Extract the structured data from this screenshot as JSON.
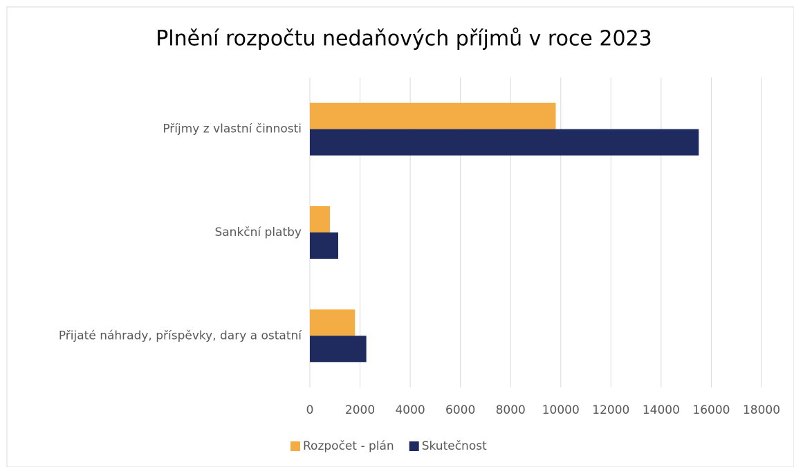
{
  "chart_data": {
    "type": "hbar",
    "title": "Plnění rozpočtu nedaňových příjmů v roce 2023",
    "categories": [
      "Příjmy z vlastní činnosti",
      "Sankční platby",
      "Přijaté náhrady, příspěvky, dary a ostatní"
    ],
    "series": [
      {
        "name": "Rozpočet - plán",
        "color": "#f4ac45",
        "values": [
          9800,
          800,
          1800
        ]
      },
      {
        "name": "Skutečnost",
        "color": "#1f2a5e",
        "values": [
          15500,
          1130,
          2250
        ]
      }
    ],
    "xlim": [
      0,
      18000
    ],
    "xticks": [
      0,
      2000,
      4000,
      6000,
      8000,
      10000,
      12000,
      14000,
      16000,
      18000
    ],
    "grid": true,
    "legend": "bottom"
  }
}
